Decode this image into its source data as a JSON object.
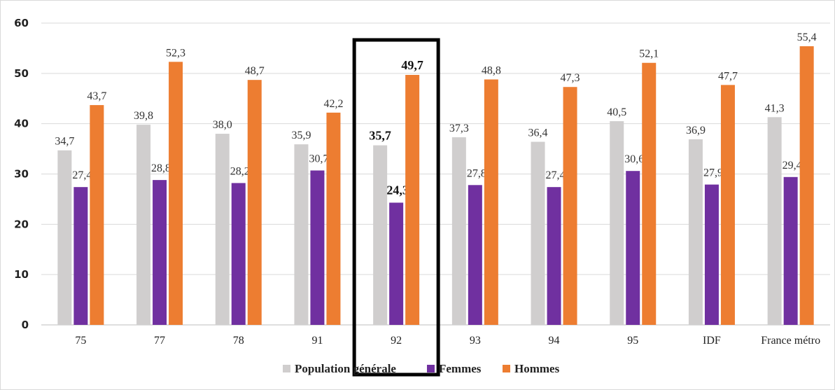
{
  "chart_data": {
    "type": "bar",
    "categories": [
      "75",
      "77",
      "78",
      "91",
      "92",
      "93",
      "94",
      "95",
      "IDF",
      "France métro"
    ],
    "series": [
      {
        "name": "Population générale",
        "color": "#d0cece",
        "values": [
          34.7,
          39.8,
          38.0,
          35.9,
          35.7,
          37.3,
          36.4,
          40.5,
          36.9,
          41.3
        ],
        "labels": [
          "34,7",
          "39,8",
          "38,0",
          "35,9",
          "35,7",
          "37,3",
          "36,4",
          "40,5",
          "36,9",
          "41,3"
        ]
      },
      {
        "name": "Femmes",
        "color": "#7030a0",
        "values": [
          27.4,
          28.8,
          28.2,
          30.7,
          24.3,
          27.8,
          27.4,
          30.6,
          27.9,
          29.4
        ],
        "labels": [
          "27,4",
          "28,8",
          "28,2",
          "30,7",
          "24,3",
          "27,8",
          "27,4",
          "30,6",
          "27,9",
          "29,4"
        ]
      },
      {
        "name": "Hommes",
        "color": "#ed7d31",
        "values": [
          43.7,
          52.3,
          48.7,
          42.2,
          49.7,
          48.8,
          47.3,
          52.1,
          47.7,
          55.4
        ],
        "labels": [
          "43,7",
          "52,3",
          "48,7",
          "42,2",
          "49,7",
          "48,8",
          "47,3",
          "52,1",
          "47,7",
          "55,4"
        ]
      }
    ],
    "highlighted_category": "92",
    "ylim": [
      0,
      60
    ],
    "yticks": [
      0,
      10,
      20,
      30,
      40,
      50,
      60
    ],
    "grid": true,
    "legend": "bottom",
    "title": "",
    "xlabel": "",
    "ylabel": ""
  }
}
